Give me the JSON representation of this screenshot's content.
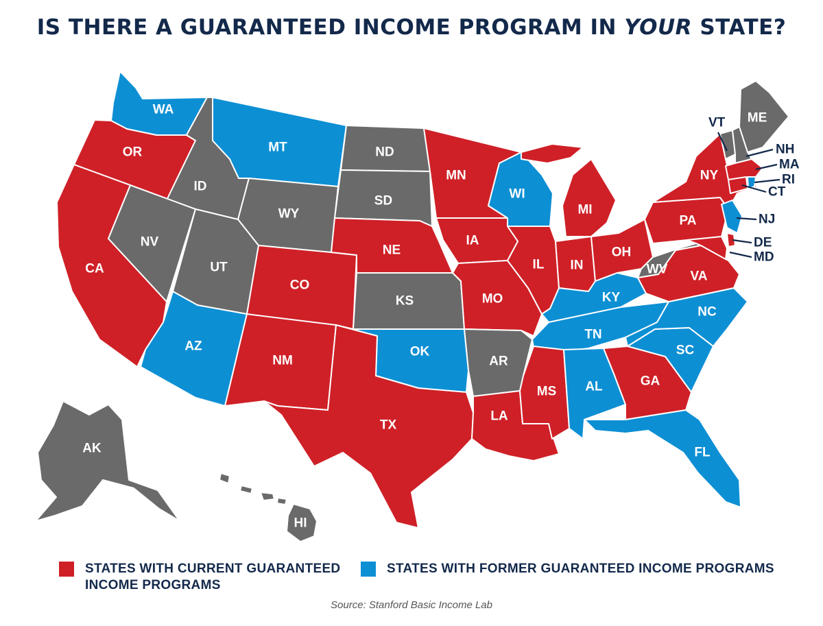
{
  "title": {
    "main": "IS THERE A GUARANTEED INCOME PROGRAM IN ",
    "emphasis": "YOUR",
    "end": " STATE?"
  },
  "colors": {
    "current": "#cf2027",
    "former": "#0d8fd4",
    "none": "#6a6a6a",
    "label": "#13294b"
  },
  "states": {
    "WA": "former",
    "OR": "current",
    "CA": "current",
    "ID": "none",
    "NV": "none",
    "MT": "former",
    "WY": "none",
    "UT": "none",
    "AZ": "former",
    "CO": "current",
    "NM": "current",
    "ND": "none",
    "SD": "none",
    "NE": "current",
    "KS": "none",
    "OK": "former",
    "TX": "current",
    "MN": "current",
    "IA": "current",
    "MO": "current",
    "AR": "none",
    "LA": "current",
    "WI": "former",
    "IL": "current",
    "MS": "current",
    "MI": "current",
    "IN": "current",
    "KY": "former",
    "TN": "former",
    "AL": "former",
    "OH": "current",
    "WV": "none",
    "GA": "current",
    "FL": "former",
    "SC": "former",
    "NC": "former",
    "VA": "current",
    "PA": "current",
    "NY": "current",
    "ME": "none",
    "VT": "none",
    "NH": "none",
    "MA": "current",
    "RI": "former",
    "CT": "current",
    "NJ": "former",
    "DE": "current",
    "MD": "current",
    "AK": "none",
    "HI": "none"
  },
  "labels": {
    "WA": "WA",
    "OR": "OR",
    "CA": "CA",
    "ID": "ID",
    "NV": "NV",
    "MT": "MT",
    "WY": "WY",
    "UT": "UT",
    "AZ": "AZ",
    "CO": "CO",
    "NM": "NM",
    "ND": "ND",
    "SD": "SD",
    "NE": "NE",
    "KS": "KS",
    "OK": "OK",
    "TX": "TX",
    "MN": "MN",
    "IA": "IA",
    "MO": "MO",
    "AR": "AR",
    "LA": "LA",
    "WI": "WI",
    "IL": "IL",
    "MS": "MS",
    "MI": "MI",
    "IN": "IN",
    "KY": "KY",
    "TN": "TN",
    "AL": "AL",
    "OH": "OH",
    "WV": "WV",
    "GA": "GA",
    "FL": "FL",
    "SC": "SC",
    "NC": "NC",
    "VA": "VA",
    "PA": "PA",
    "NY": "NY",
    "ME": "ME",
    "AK": "AK",
    "HI": "HI",
    "VT": "VT",
    "NH": "NH",
    "MA": "MA",
    "RI": "RI",
    "CT": "CT",
    "NJ": "NJ",
    "DE": "DE",
    "MD": "MD"
  },
  "legend": {
    "current": "STATES WITH CURRENT GUARANTEED INCOME PROGRAMS",
    "former": "STATES WITH FORMER GUARANTEED INCOME PROGRAMS"
  },
  "source": "Source: Stanford Basic Income Lab"
}
